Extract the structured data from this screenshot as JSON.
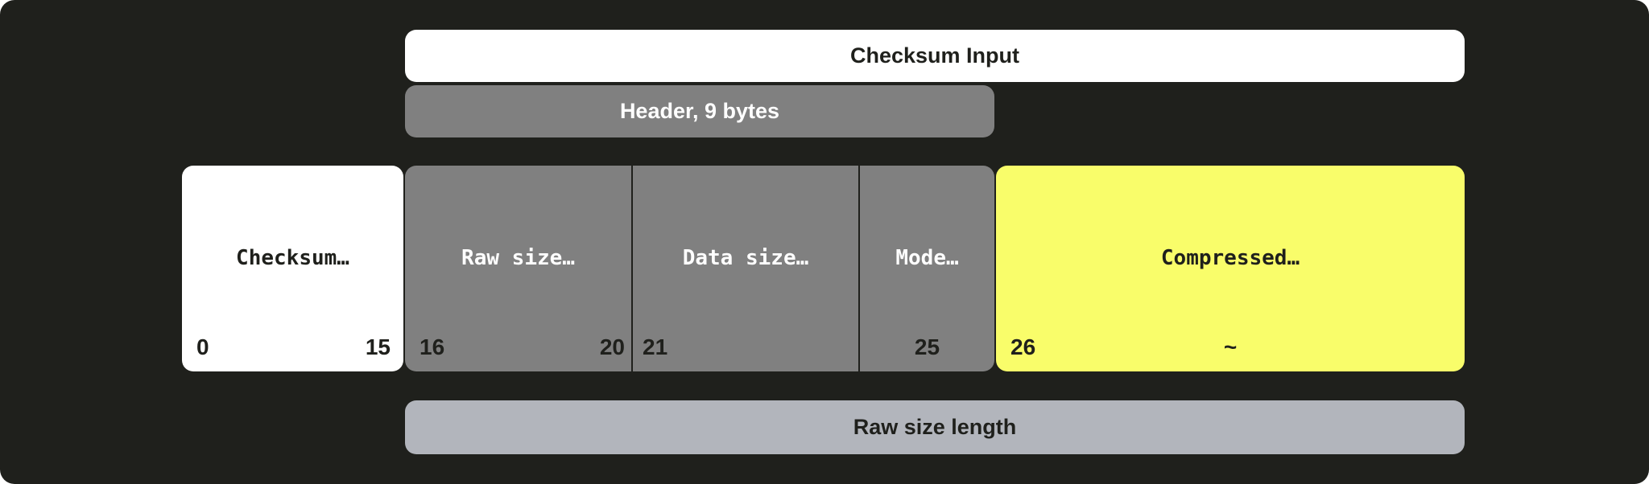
{
  "colors": {
    "background": "#1f201c",
    "white": "#ffffff",
    "header": "#808080",
    "compressed": "#f9fd6a",
    "raw_size_length": "#b2b5bc"
  },
  "bars": {
    "checksum_input": "Checksum Input",
    "header": "Header, 9 bytes",
    "raw_size_length": "Raw size length"
  },
  "fields": [
    {
      "label": "Checksum…",
      "start": "0",
      "end": "15"
    },
    {
      "label": "Raw size…",
      "start": "16",
      "end": "20"
    },
    {
      "label": "Data size…",
      "start": "21",
      "end": ""
    },
    {
      "label": "Mode…",
      "start": "",
      "end": "25"
    },
    {
      "label": "Compressed…",
      "start": "26",
      "end": "~"
    }
  ]
}
